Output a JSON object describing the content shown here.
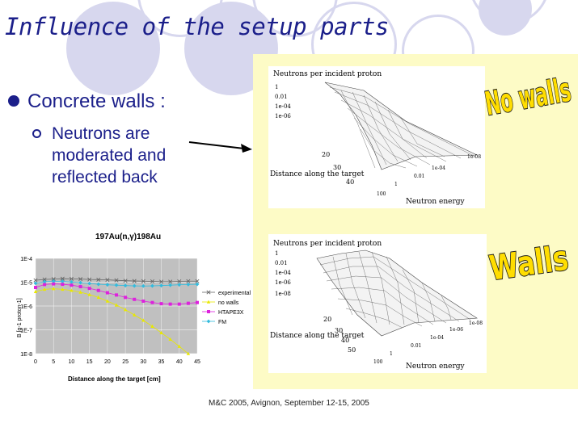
{
  "slide": {
    "title": "Influence of the setup parts",
    "bullet_main": "Concrete walls :",
    "bullet_sub_lines": [
      "Neutrons are",
      "moderated and",
      "reflected back"
    ],
    "footer": "M&C 2005, Avignon, September 12-15, 2005",
    "label_no_walls": "No walls",
    "label_walls": "Walls"
  },
  "plot_top": {
    "title": "Neutrons per incident proton",
    "z_ticks": [
      "1",
      "0.01",
      "1e-04",
      "1e-06"
    ],
    "x_ticks": [
      "20",
      "30",
      "40"
    ],
    "x_label": "Distance along the target",
    "y_ticks": [
      "1e-08",
      "1e-06",
      "1e-04",
      "0.01",
      "1",
      "100"
    ],
    "y_label": "Neutron energy"
  },
  "plot_bottom": {
    "title": "Neutrons per incident proton",
    "z_ticks": [
      "1",
      "0.01",
      "1e-04",
      "1e-06",
      "1e-08"
    ],
    "x_ticks": [
      "20",
      "30",
      "40",
      "50"
    ],
    "x_label": "Distance along the target",
    "y_ticks": [
      "1e-08",
      "1e-06",
      "1e-04",
      "0.01",
      "1",
      "100"
    ],
    "y_label": "Neutron energy"
  },
  "chart_data": {
    "type": "line",
    "title": "197Au(n,γ)198Au",
    "xlabel": "Distance along the target [cm]",
    "ylabel": "B [g-1 proton-1]",
    "x": [
      0,
      2.5,
      5,
      7.5,
      10,
      12.5,
      15,
      17.5,
      20,
      22.5,
      25,
      27.5,
      30,
      32.5,
      35,
      37.5,
      40,
      42.5,
      45
    ],
    "x_ticks": [
      0,
      5,
      10,
      15,
      20,
      25,
      30,
      35,
      40,
      45
    ],
    "xlim": [
      0,
      45
    ],
    "y_log": true,
    "y_ticks": [
      "1E-4",
      "1E-5",
      "1E-6",
      "1E-7",
      "1E-8"
    ],
    "ylim_exp": [
      -8,
      -4
    ],
    "grid": true,
    "legend_position": "right",
    "series": [
      {
        "name": "experimental",
        "color": "#666666",
        "marker": "x",
        "values": [
          1.2e-05,
          1.3e-05,
          1.35e-05,
          1.4e-05,
          1.38e-05,
          1.35e-05,
          1.3e-05,
          1.28e-05,
          1.25e-05,
          1.2e-05,
          1.15e-05,
          1.12e-05,
          1.1e-05,
          1.08e-05,
          1.05e-05,
          1.05e-05,
          1.08e-05,
          1.1e-05,
          1.1e-05
        ]
      },
      {
        "name": "no walls",
        "color": "#e8e800",
        "marker": "triangle",
        "values": [
          4e-06,
          5e-06,
          5.3e-06,
          5e-06,
          4.5e-06,
          3.8e-06,
          3e-06,
          2.3e-06,
          1.6e-06,
          1.1e-06,
          7e-07,
          4.2e-07,
          2.5e-07,
          1.4e-07,
          7.5e-08,
          4e-08,
          2e-08,
          1e-08,
          5e-09
        ]
      },
      {
        "name": "HTAPE3X",
        "color": "#dd22dd",
        "marker": "square",
        "values": [
          6e-06,
          8e-06,
          8.5e-06,
          8.2e-06,
          7.5e-06,
          6.5e-06,
          5.5e-06,
          4.5e-06,
          3.6e-06,
          2.9e-06,
          2.3e-06,
          1.9e-06,
          1.6e-06,
          1.4e-06,
          1.25e-06,
          1.2e-06,
          1.2e-06,
          1.3e-06,
          1.4e-06
        ]
      },
      {
        "name": "FM",
        "color": "#33bbdd",
        "marker": "diamond",
        "values": [
          9e-06,
          1.05e-05,
          1.1e-05,
          1.08e-05,
          1.02e-05,
          9.5e-06,
          8.8e-06,
          8.2e-06,
          7.8e-06,
          7.5e-06,
          7.2e-06,
          7e-06,
          6.9e-06,
          7e-06,
          7.2e-06,
          7.5e-06,
          7.8e-06,
          8e-06,
          8.2e-06
        ]
      }
    ]
  },
  "colors": {
    "text_primary": "#1b1f8a",
    "decor_circles": "#d7d7ee",
    "highlight_bg": "#fdfbc6",
    "stamp_fill": "#ffdd00"
  }
}
